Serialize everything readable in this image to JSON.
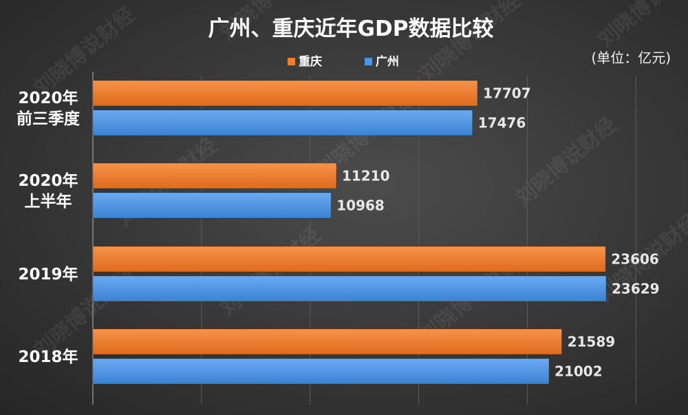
{
  "chart_data": {
    "type": "bar",
    "orientation": "horizontal",
    "title": "广州、重庆近年GDP数据比较",
    "unit_label": "(单位：亿元)",
    "categories": [
      [
        "2020年",
        "前三季度"
      ],
      [
        "2020年",
        "上半年"
      ],
      [
        "2019年"
      ],
      [
        "2018年"
      ]
    ],
    "series": [
      {
        "name": "重庆",
        "color": "#f07d2c",
        "values": [
          17707,
          11210,
          23606,
          21589
        ]
      },
      {
        "name": "广州",
        "color": "#4b95e2",
        "values": [
          17476,
          10968,
          23629,
          21002
        ]
      }
    ],
    "legend_position": "top-center",
    "grid": true,
    "xlim": [
      0,
      25000
    ]
  },
  "watermark_text": "刘晓博说财经"
}
